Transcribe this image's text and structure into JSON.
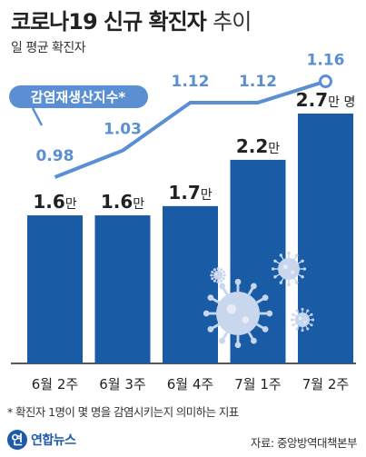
{
  "header": {
    "title": "코로나19 신규 확진자",
    "title_suffix": "추이",
    "subtitle": "일 평균 확진자"
  },
  "chart_data": {
    "type": "bar",
    "categories": [
      "6월 2주",
      "6월 3주",
      "6월 4주",
      "7월 1주",
      "7월 2주"
    ],
    "bar_series": {
      "values": [
        1.6,
        1.6,
        1.7,
        2.2,
        2.7
      ],
      "labels": [
        "1.6",
        "1.6",
        "1.7",
        "2.2",
        "2.7"
      ],
      "unit": "만",
      "last_unit": "만 명",
      "color": "#1a5ba6"
    },
    "line_series": {
      "name": "감염재생산지수*",
      "values": [
        0.98,
        1.03,
        1.12,
        1.12,
        1.16
      ],
      "labels": [
        "0.98",
        "1.03",
        "1.12",
        "1.12",
        "1.16"
      ],
      "color": "#5b8fd3"
    },
    "ylim": [
      0,
      3.2
    ]
  },
  "footnote": "* 확진자 1명이 몇 명을 감염시키는지 의미하는 지표",
  "footer": {
    "logo": "연합뉴스",
    "source": "자료: 중앙방역대책본부"
  },
  "colors": {
    "bar": "#1a5ba6",
    "line": "#5b8fd3",
    "text": "#222222"
  },
  "icons": [
    "coronavirus-icon"
  ]
}
